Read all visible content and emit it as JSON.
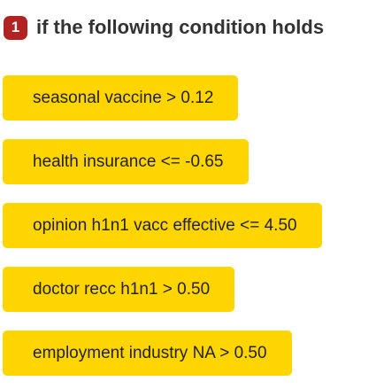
{
  "header": {
    "step_number": "1",
    "title": "if the following condition holds"
  },
  "conditions": [
    {
      "text": "seasonal vaccine > 0.12"
    },
    {
      "text": "health insurance <= -0.65"
    },
    {
      "text": "opinion h1n1 vacc effective <= 4.50"
    },
    {
      "text": "doctor recc h1n1 > 0.50"
    },
    {
      "text": "employment industry NA > 0.50"
    }
  ],
  "colors": {
    "badge": "#b22222",
    "chip": "#ffd500"
  }
}
